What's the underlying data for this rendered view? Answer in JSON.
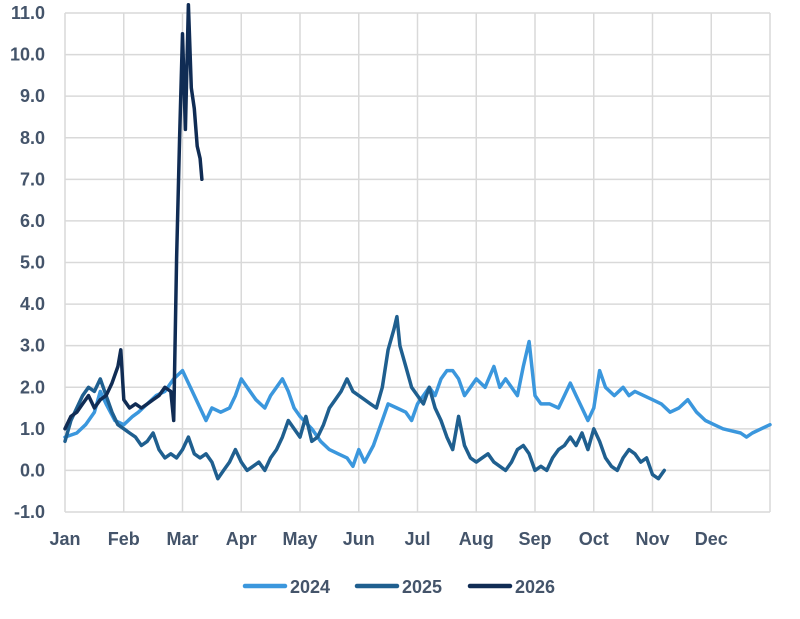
{
  "chart_data": {
    "type": "line",
    "title": "",
    "xlabel": "",
    "ylabel": "",
    "ylim": [
      -1.0,
      11.0
    ],
    "yticks": [
      "11.0",
      "10.0",
      "9.0",
      "8.0",
      "7.0",
      "6.0",
      "5.0",
      "4.0",
      "3.0",
      "2.0",
      "1.0",
      "0.0",
      "-1.0"
    ],
    "ytick_values": [
      11,
      10,
      9,
      8,
      7,
      6,
      5,
      4,
      3,
      2,
      1,
      0,
      -1
    ],
    "months": [
      "Jan",
      "Feb",
      "Mar",
      "Apr",
      "May",
      "Jun",
      "Jul",
      "Aug",
      "Sep",
      "Oct",
      "Nov",
      "Dec"
    ],
    "xlim": [
      0,
      12
    ],
    "grid": true,
    "legend_position": "bottom",
    "series": [
      {
        "name": "2024",
        "color": "#3b97dd",
        "points": [
          [
            0.0,
            0.8
          ],
          [
            0.2,
            0.9
          ],
          [
            0.35,
            1.1
          ],
          [
            0.5,
            1.4
          ],
          [
            0.6,
            1.9
          ],
          [
            0.7,
            1.6
          ],
          [
            0.85,
            1.2
          ],
          [
            1.0,
            1.1
          ],
          [
            1.15,
            1.3
          ],
          [
            1.25,
            1.4
          ],
          [
            1.4,
            1.6
          ],
          [
            1.55,
            1.8
          ],
          [
            1.7,
            1.9
          ],
          [
            1.85,
            2.2
          ],
          [
            2.0,
            2.4
          ],
          [
            2.1,
            2.1
          ],
          [
            2.2,
            1.8
          ],
          [
            2.3,
            1.5
          ],
          [
            2.4,
            1.2
          ],
          [
            2.5,
            1.5
          ],
          [
            2.65,
            1.4
          ],
          [
            2.8,
            1.5
          ],
          [
            2.9,
            1.8
          ],
          [
            3.0,
            2.2
          ],
          [
            3.1,
            2.0
          ],
          [
            3.25,
            1.7
          ],
          [
            3.4,
            1.5
          ],
          [
            3.5,
            1.8
          ],
          [
            3.6,
            2.0
          ],
          [
            3.7,
            2.2
          ],
          [
            3.8,
            1.9
          ],
          [
            3.9,
            1.5
          ],
          [
            4.0,
            1.3
          ],
          [
            4.2,
            1.0
          ],
          [
            4.35,
            0.7
          ],
          [
            4.5,
            0.5
          ],
          [
            4.65,
            0.4
          ],
          [
            4.8,
            0.3
          ],
          [
            4.9,
            0.1
          ],
          [
            5.0,
            0.5
          ],
          [
            5.1,
            0.2
          ],
          [
            5.25,
            0.6
          ],
          [
            5.4,
            1.2
          ],
          [
            5.5,
            1.6
          ],
          [
            5.65,
            1.5
          ],
          [
            5.8,
            1.4
          ],
          [
            5.9,
            1.2
          ],
          [
            6.0,
            1.6
          ],
          [
            6.1,
            1.8
          ],
          [
            6.2,
            2.0
          ],
          [
            6.3,
            1.8
          ],
          [
            6.4,
            2.2
          ],
          [
            6.5,
            2.4
          ],
          [
            6.6,
            2.4
          ],
          [
            6.7,
            2.2
          ],
          [
            6.8,
            1.8
          ],
          [
            6.9,
            2.0
          ],
          [
            7.0,
            2.2
          ],
          [
            7.15,
            2.0
          ],
          [
            7.3,
            2.5
          ],
          [
            7.4,
            2.0
          ],
          [
            7.5,
            2.2
          ],
          [
            7.6,
            2.0
          ],
          [
            7.7,
            1.8
          ],
          [
            7.8,
            2.5
          ],
          [
            7.9,
            3.1
          ],
          [
            8.0,
            1.8
          ],
          [
            8.1,
            1.6
          ],
          [
            8.25,
            1.6
          ],
          [
            8.4,
            1.5
          ],
          [
            8.5,
            1.8
          ],
          [
            8.6,
            2.1
          ],
          [
            8.7,
            1.8
          ],
          [
            8.8,
            1.5
          ],
          [
            8.9,
            1.2
          ],
          [
            9.0,
            1.5
          ],
          [
            9.1,
            2.4
          ],
          [
            9.2,
            2.0
          ],
          [
            9.35,
            1.8
          ],
          [
            9.5,
            2.0
          ],
          [
            9.6,
            1.8
          ],
          [
            9.7,
            1.9
          ],
          [
            9.85,
            1.8
          ],
          [
            10.0,
            1.7
          ],
          [
            10.15,
            1.6
          ],
          [
            10.3,
            1.4
          ],
          [
            10.45,
            1.5
          ],
          [
            10.6,
            1.7
          ],
          [
            10.75,
            1.4
          ],
          [
            10.9,
            1.2
          ],
          [
            11.05,
            1.1
          ],
          [
            11.2,
            1.0
          ],
          [
            11.35,
            0.95
          ],
          [
            11.5,
            0.9
          ],
          [
            11.6,
            0.8
          ],
          [
            11.7,
            0.9
          ],
          [
            11.85,
            1.0
          ],
          [
            12.0,
            1.1
          ]
        ]
      },
      {
        "name": "2025",
        "color": "#1f5f8f",
        "points": [
          [
            0.0,
            0.7
          ],
          [
            0.1,
            1.2
          ],
          [
            0.2,
            1.5
          ],
          [
            0.3,
            1.8
          ],
          [
            0.4,
            2.0
          ],
          [
            0.5,
            1.9
          ],
          [
            0.6,
            2.2
          ],
          [
            0.7,
            1.8
          ],
          [
            0.8,
            1.4
          ],
          [
            0.9,
            1.1
          ],
          [
            1.0,
            1.0
          ],
          [
            1.1,
            0.9
          ],
          [
            1.2,
            0.8
          ],
          [
            1.3,
            0.6
          ],
          [
            1.4,
            0.7
          ],
          [
            1.5,
            0.9
          ],
          [
            1.6,
            0.5
          ],
          [
            1.7,
            0.3
          ],
          [
            1.8,
            0.4
          ],
          [
            1.9,
            0.3
          ],
          [
            2.0,
            0.5
          ],
          [
            2.1,
            0.8
          ],
          [
            2.2,
            0.4
          ],
          [
            2.3,
            0.3
          ],
          [
            2.4,
            0.4
          ],
          [
            2.5,
            0.2
          ],
          [
            2.6,
            -0.2
          ],
          [
            2.7,
            0.0
          ],
          [
            2.8,
            0.2
          ],
          [
            2.9,
            0.5
          ],
          [
            3.0,
            0.2
          ],
          [
            3.1,
            0.0
          ],
          [
            3.2,
            0.1
          ],
          [
            3.3,
            0.2
          ],
          [
            3.4,
            0.0
          ],
          [
            3.5,
            0.3
          ],
          [
            3.6,
            0.5
          ],
          [
            3.7,
            0.8
          ],
          [
            3.8,
            1.2
          ],
          [
            3.9,
            1.0
          ],
          [
            4.0,
            0.8
          ],
          [
            4.1,
            1.3
          ],
          [
            4.2,
            0.7
          ],
          [
            4.3,
            0.8
          ],
          [
            4.4,
            1.1
          ],
          [
            4.5,
            1.5
          ],
          [
            4.6,
            1.7
          ],
          [
            4.7,
            1.9
          ],
          [
            4.8,
            2.2
          ],
          [
            4.9,
            1.9
          ],
          [
            5.0,
            1.8
          ],
          [
            5.1,
            1.7
          ],
          [
            5.2,
            1.6
          ],
          [
            5.3,
            1.5
          ],
          [
            5.4,
            2.0
          ],
          [
            5.5,
            2.9
          ],
          [
            5.6,
            3.4
          ],
          [
            5.65,
            3.7
          ],
          [
            5.7,
            3.0
          ],
          [
            5.8,
            2.5
          ],
          [
            5.9,
            2.0
          ],
          [
            6.0,
            1.8
          ],
          [
            6.1,
            1.6
          ],
          [
            6.2,
            2.0
          ],
          [
            6.3,
            1.5
          ],
          [
            6.4,
            1.2
          ],
          [
            6.5,
            0.8
          ],
          [
            6.6,
            0.5
          ],
          [
            6.7,
            1.3
          ],
          [
            6.8,
            0.6
          ],
          [
            6.9,
            0.3
          ],
          [
            7.0,
            0.2
          ],
          [
            7.1,
            0.3
          ],
          [
            7.2,
            0.4
          ],
          [
            7.3,
            0.2
          ],
          [
            7.4,
            0.1
          ],
          [
            7.5,
            0.0
          ],
          [
            7.6,
            0.2
          ],
          [
            7.7,
            0.5
          ],
          [
            7.8,
            0.6
          ],
          [
            7.9,
            0.4
          ],
          [
            8.0,
            0.0
          ],
          [
            8.1,
            0.1
          ],
          [
            8.2,
            0.0
          ],
          [
            8.3,
            0.3
          ],
          [
            8.4,
            0.5
          ],
          [
            8.5,
            0.6
          ],
          [
            8.6,
            0.8
          ],
          [
            8.7,
            0.6
          ],
          [
            8.8,
            0.9
          ],
          [
            8.9,
            0.5
          ],
          [
            9.0,
            1.0
          ],
          [
            9.1,
            0.7
          ],
          [
            9.2,
            0.3
          ],
          [
            9.3,
            0.1
          ],
          [
            9.4,
            0.0
          ],
          [
            9.5,
            0.3
          ],
          [
            9.6,
            0.5
          ],
          [
            9.7,
            0.4
          ],
          [
            9.8,
            0.2
          ],
          [
            9.9,
            0.3
          ],
          [
            10.0,
            -0.1
          ],
          [
            10.1,
            -0.2
          ],
          [
            10.2,
            0.0
          ]
        ]
      },
      {
        "name": "2026",
        "color": "#102c54",
        "points": [
          [
            0.0,
            1.0
          ],
          [
            0.1,
            1.3
          ],
          [
            0.2,
            1.4
          ],
          [
            0.3,
            1.6
          ],
          [
            0.4,
            1.8
          ],
          [
            0.5,
            1.5
          ],
          [
            0.6,
            1.7
          ],
          [
            0.7,
            1.8
          ],
          [
            0.8,
            2.1
          ],
          [
            0.9,
            2.5
          ],
          [
            0.95,
            2.9
          ],
          [
            1.0,
            1.7
          ],
          [
            1.1,
            1.5
          ],
          [
            1.2,
            1.6
          ],
          [
            1.3,
            1.5
          ],
          [
            1.4,
            1.6
          ],
          [
            1.5,
            1.7
          ],
          [
            1.6,
            1.8
          ],
          [
            1.7,
            2.0
          ],
          [
            1.8,
            1.9
          ],
          [
            1.85,
            1.2
          ],
          [
            1.9,
            5.1
          ],
          [
            1.95,
            8.0
          ],
          [
            2.0,
            10.5
          ],
          [
            2.05,
            8.2
          ],
          [
            2.1,
            11.2
          ],
          [
            2.15,
            9.2
          ],
          [
            2.2,
            8.7
          ],
          [
            2.25,
            7.8
          ],
          [
            2.3,
            7.5
          ],
          [
            2.33,
            7.0
          ]
        ]
      }
    ]
  }
}
